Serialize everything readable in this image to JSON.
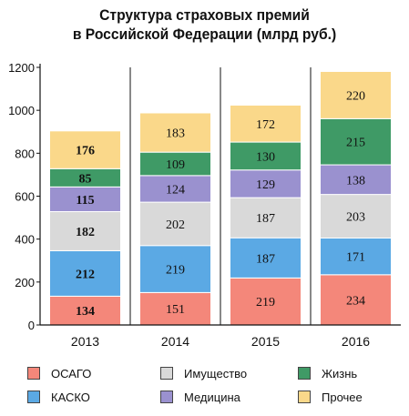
{
  "chart_data": {
    "type": "bar",
    "stacked": true,
    "title": "Структура страховых премий\nв Российской Федерации (млрд руб.)",
    "title_lines": [
      "Структура страховых премий",
      "в Российской Федерации (млрд руб.)"
    ],
    "categories": [
      "2013",
      "2014",
      "2015",
      "2016"
    ],
    "ylim": [
      0,
      1200
    ],
    "yticks": [
      0,
      200,
      400,
      600,
      800,
      1000,
      1200
    ],
    "ytick_labels": [
      "0",
      "200",
      "400",
      "600",
      "800",
      "1000",
      "1200"
    ],
    "grid": false,
    "legend_position": "bottom",
    "series": [
      {
        "name": "ОСАГО",
        "color": "#f4877a",
        "values": [
          134,
          151,
          219,
          234
        ]
      },
      {
        "name": "КАСКО",
        "color": "#5ba9e4",
        "values": [
          212,
          219,
          187,
          171
        ]
      },
      {
        "name": "Имущество",
        "color": "#d9d9d9",
        "values": [
          182,
          202,
          187,
          203
        ]
      },
      {
        "name": "Медицина",
        "color": "#9a91cf",
        "values": [
          115,
          124,
          129,
          138
        ]
      },
      {
        "name": "Жизнь",
        "color": "#3f9a66",
        "values": [
          85,
          109,
          130,
          215
        ]
      },
      {
        "name": "Прочее",
        "color": "#fad88a",
        "values": [
          176,
          183,
          172,
          220
        ]
      }
    ],
    "value_labels": [
      [
        "134",
        "151",
        "219",
        "234"
      ],
      [
        "212",
        "219",
        "187",
        "171"
      ],
      [
        "182",
        "202",
        "187",
        "203"
      ],
      [
        "115",
        "124",
        "129",
        "138"
      ],
      [
        "85",
        "109",
        "130",
        "215"
      ],
      [
        "176",
        "183",
        "172",
        "220"
      ]
    ],
    "bold_labels_category": "2013",
    "legend_order": [
      "ОСАГО",
      "Имущество",
      "Жизнь",
      "КАСКО",
      "Медицина",
      "Прочее"
    ]
  }
}
